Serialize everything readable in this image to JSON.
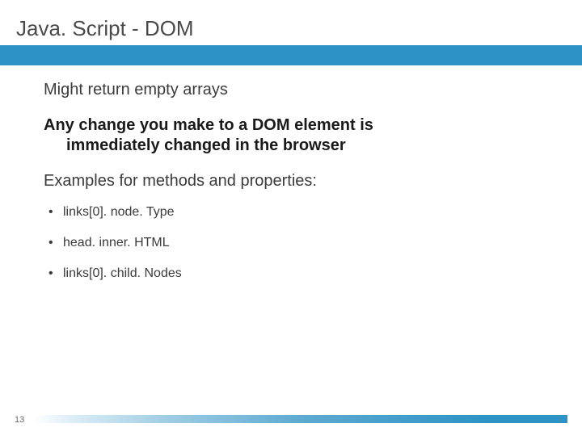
{
  "title": "Java. Script - DOM",
  "accent_color": "#2d93c5",
  "background_color": "#ffffff",
  "title_color": "#4a4a4a",
  "text_color": "#3b3b3b",
  "bold_color": "#1a1a1a",
  "title_fontsize": 26,
  "body_fontsize": 20,
  "bullet_fontsize": 16,
  "content": {
    "line1": "Might return empty arrays",
    "line2a": "Any change you make to a DOM element is",
    "line2b": "immediately changed in the browser",
    "line3": "Examples for methods and properties:",
    "bullets": [
      "links[0]. node. Type",
      "head. inner. HTML",
      "links[0]. child. Nodes"
    ]
  },
  "page_number": "13",
  "footer_gradient_stops": [
    "#ffffff",
    "#d9ecf6",
    "#9fcde4",
    "#5eaad1",
    "#2d93c5"
  ]
}
